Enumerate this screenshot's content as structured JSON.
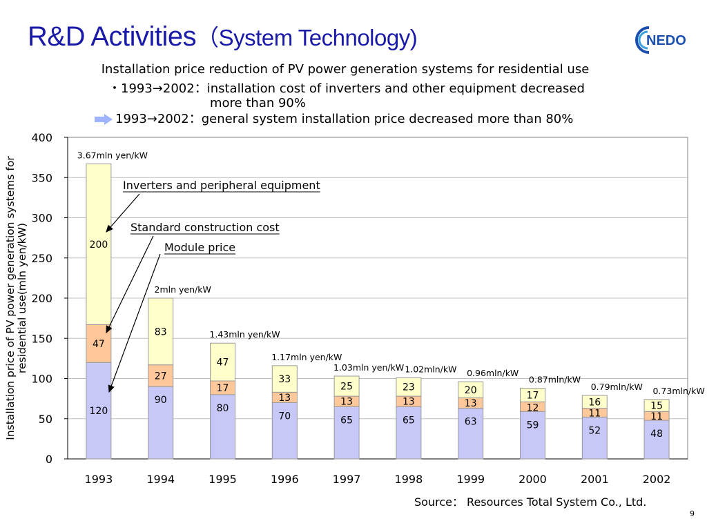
{
  "slide": {
    "title": "R&D Activities",
    "title_paren": "（System Technology)",
    "logo_text": "NEDO",
    "subtitle": "Installation price reduction of PV power generation systems for residential use",
    "bullet1_line1": "・1993→2002：installation cost of inverters and other equipment decreased",
    "bullet1_line2": "more than 90%",
    "bullet2": "1993→2002：general system installation price decreased more than 80%",
    "source": "Source： Resources Total System Co., Ltd.",
    "page_number": "9",
    "colors": {
      "title": "#1a1aa8",
      "arrow": "#9fb4ff"
    }
  },
  "chart_data": {
    "type": "bar",
    "stacked": true,
    "categories": [
      "1993",
      "1994",
      "1995",
      "1996",
      "1997",
      "1998",
      "1999",
      "2000",
      "2001",
      "2002"
    ],
    "series": [
      {
        "name": "Module price",
        "values": [
          120,
          90,
          80,
          70,
          65,
          65,
          63,
          59,
          52,
          48
        ],
        "color": "#c8c8f8"
      },
      {
        "name": "Standard construction cost",
        "values": [
          47,
          27,
          17,
          13,
          13,
          13,
          13,
          12,
          11,
          11
        ],
        "color": "#ffc89a"
      },
      {
        "name": "Inverters and peripheral equipment",
        "values": [
          200,
          83,
          47,
          33,
          25,
          23,
          20,
          17,
          16,
          15
        ],
        "color": "#ffffcc"
      }
    ],
    "totals_labels": [
      "3.67mln yen/kW",
      "2mln yen/kW",
      "1.43mln yen/kW",
      "1.17mln yen/kW",
      "1.03mln yen/kW",
      "1.02mln/kW",
      "0.96mln/kW",
      "0.87mln/kW",
      "0.79mln/kW",
      "0.73mln/kW"
    ],
    "ylabel": "Installation price of PV power generation systems for residential use(mln yen/kW)",
    "ylim": [
      0,
      400
    ],
    "yticks": [
      0,
      50,
      100,
      150,
      200,
      250,
      300,
      350,
      400
    ],
    "grid": true,
    "callouts": [
      "Inverters and peripheral equipment",
      "Standard construction cost",
      "Module price"
    ]
  }
}
